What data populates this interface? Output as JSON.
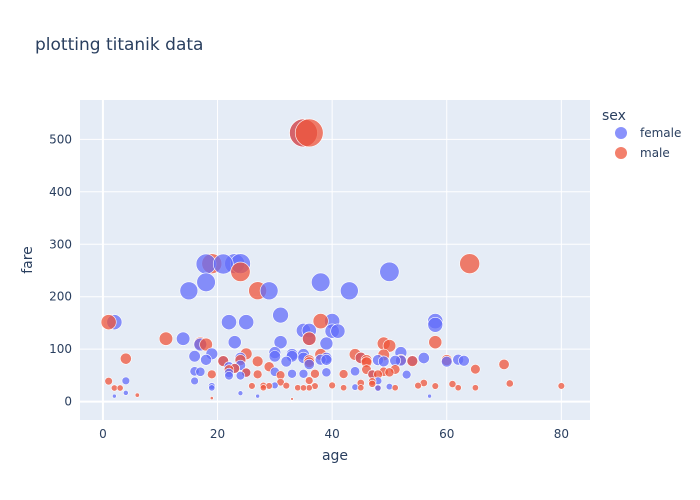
{
  "chart_data": {
    "type": "scatter",
    "title": "plotting titanik data",
    "xlabel": "age",
    "ylabel": "fare",
    "xlim": [
      -4,
      85
    ],
    "ylim": [
      -35,
      575
    ],
    "x_ticks": [
      0,
      20,
      40,
      60,
      80
    ],
    "y_ticks": [
      0,
      100,
      200,
      300,
      400,
      500
    ],
    "grid": true,
    "size_encoding": "fare",
    "legend": {
      "title": "sex",
      "position": "top-right"
    },
    "series": [
      {
        "name": "female",
        "color": "#636efa",
        "points": [
          [
            2,
            151.55
          ],
          [
            4,
            39.7
          ],
          [
            4,
            16.7
          ],
          [
            2,
            10.5
          ],
          [
            14,
            120
          ],
          [
            15,
            211.3
          ],
          [
            16,
            86.5
          ],
          [
            16,
            57.8
          ],
          [
            16,
            39.4
          ],
          [
            17,
            108.9
          ],
          [
            17,
            57
          ],
          [
            18,
            262.4
          ],
          [
            18,
            227.5
          ],
          [
            18,
            79.65
          ],
          [
            19,
            91.1
          ],
          [
            19,
            30
          ],
          [
            19,
            26.3
          ],
          [
            21,
            262.4
          ],
          [
            21,
            77.9
          ],
          [
            22,
            151.55
          ],
          [
            22,
            66.6
          ],
          [
            22,
            55
          ],
          [
            22,
            49.5
          ],
          [
            23,
            263
          ],
          [
            23,
            113.3
          ],
          [
            23,
            63.4
          ],
          [
            24,
            263
          ],
          [
            24,
            83.2
          ],
          [
            24,
            69.3
          ],
          [
            24,
            49.5
          ],
          [
            24,
            16.1
          ],
          [
            25,
            151.55
          ],
          [
            25,
            55.4
          ],
          [
            27,
            10.5
          ],
          [
            29,
            211.3
          ],
          [
            30,
            86.5
          ],
          [
            30,
            93.5
          ],
          [
            30,
            56.9
          ],
          [
            30,
            31
          ],
          [
            31,
            164.9
          ],
          [
            31,
            113.3
          ],
          [
            32,
            76.3
          ],
          [
            33,
            86.5
          ],
          [
            33,
            90
          ],
          [
            33,
            53.1
          ],
          [
            35,
            512.3
          ],
          [
            35,
            135.6
          ],
          [
            35,
            90
          ],
          [
            35,
            83.5
          ],
          [
            35,
            53.1
          ],
          [
            36,
            135.6
          ],
          [
            36,
            120
          ],
          [
            36,
            71
          ],
          [
            38,
            227.5
          ],
          [
            38,
            80
          ],
          [
            39,
            110.9
          ],
          [
            39,
            83.2
          ],
          [
            39,
            79.65
          ],
          [
            39,
            55.9
          ],
          [
            40,
            153.5
          ],
          [
            40,
            134.5
          ],
          [
            41,
            134.5
          ],
          [
            43,
            211.3
          ],
          [
            44,
            57.9
          ],
          [
            44,
            27.7
          ],
          [
            45,
            83.5
          ],
          [
            47,
            52.55
          ],
          [
            48,
            79.2
          ],
          [
            48,
            39.6
          ],
          [
            48,
            25.9
          ],
          [
            49,
            76.7
          ],
          [
            50,
            247.5
          ],
          [
            50,
            28.7
          ],
          [
            51,
            77.96
          ],
          [
            52,
            93.5
          ],
          [
            52,
            78.3
          ],
          [
            53,
            51.5
          ],
          [
            54,
            78.3
          ],
          [
            56,
            83.2
          ],
          [
            57,
            10.5
          ],
          [
            58,
            153.5
          ],
          [
            58,
            146.5
          ],
          [
            60,
            76.3
          ],
          [
            62,
            80
          ],
          [
            63,
            77.96
          ]
        ]
      },
      {
        "name": "male",
        "color": "#ef553b",
        "points": [
          [
            1,
            151.55
          ],
          [
            1,
            39
          ],
          [
            2,
            26
          ],
          [
            3,
            26
          ],
          [
            4,
            81.9
          ],
          [
            6,
            12.5
          ],
          [
            11,
            120
          ],
          [
            17,
            110.9
          ],
          [
            18,
            108.9
          ],
          [
            19,
            263
          ],
          [
            19,
            52
          ],
          [
            19,
            6.75
          ],
          [
            21,
            77.3
          ],
          [
            22,
            61.2
          ],
          [
            23,
            63.4
          ],
          [
            24,
            247.5
          ],
          [
            24,
            79.2
          ],
          [
            25,
            91.1
          ],
          [
            25,
            55.4
          ],
          [
            26,
            30
          ],
          [
            27,
            211.5
          ],
          [
            27,
            76.7
          ],
          [
            27,
            52
          ],
          [
            28,
            26.55
          ],
          [
            28,
            30.5
          ],
          [
            29,
            66.6
          ],
          [
            29,
            30
          ],
          [
            31,
            50.5
          ],
          [
            31,
            37
          ],
          [
            32,
            30.5
          ],
          [
            33,
            5
          ],
          [
            34,
            26.55
          ],
          [
            35,
            512.3
          ],
          [
            35,
            26.3
          ],
          [
            36,
            512.3
          ],
          [
            36,
            120
          ],
          [
            36,
            75.25
          ],
          [
            36,
            78.85
          ],
          [
            36,
            40.1
          ],
          [
            36,
            26.4
          ],
          [
            37,
            53.1
          ],
          [
            37,
            29.7
          ],
          [
            38,
            153.5
          ],
          [
            38,
            90
          ],
          [
            40,
            31
          ],
          [
            42,
            26.55
          ],
          [
            42,
            52.55
          ],
          [
            44,
            90
          ],
          [
            45,
            83.5
          ],
          [
            45,
            35.5
          ],
          [
            45,
            26.55
          ],
          [
            46,
            79.2
          ],
          [
            46,
            61.2
          ],
          [
            46,
            75.25
          ],
          [
            47,
            52
          ],
          [
            47,
            38.5
          ],
          [
            47,
            34
          ],
          [
            48,
            52
          ],
          [
            48,
            26.55
          ],
          [
            49,
            110.9
          ],
          [
            49,
            89.1
          ],
          [
            49,
            56.9
          ],
          [
            50,
            106.4
          ],
          [
            50,
            55.9
          ],
          [
            51,
            26.55
          ],
          [
            51,
            61.4
          ],
          [
            52,
            79.65
          ],
          [
            54,
            77.3
          ],
          [
            55,
            30.5
          ],
          [
            56,
            35.5
          ],
          [
            58,
            113.3
          ],
          [
            58,
            29.7
          ],
          [
            60,
            79.2
          ],
          [
            61,
            33.5
          ],
          [
            62,
            26.55
          ],
          [
            64,
            263
          ],
          [
            65,
            61.9
          ],
          [
            65,
            26.55
          ],
          [
            70,
            71
          ],
          [
            71,
            34.65
          ],
          [
            80,
            30
          ]
        ]
      }
    ]
  }
}
